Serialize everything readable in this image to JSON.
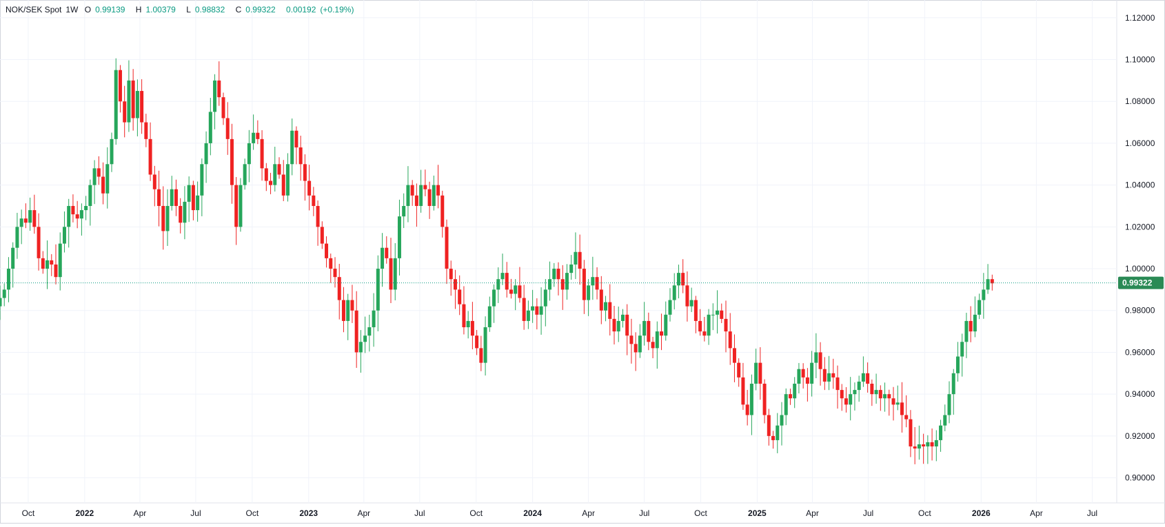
{
  "header": {
    "symbol": "NOK/SEK Spot",
    "interval": "1W",
    "open_label": "O",
    "open": "0.99139",
    "high_label": "H",
    "high": "1.00379",
    "low_label": "L",
    "low": "0.98832",
    "close_label": "C",
    "close": "0.99322",
    "change": "0.00192",
    "change_pct": "(+0.19%)"
  },
  "price_tag": "0.99322",
  "colors": {
    "up": "#26a65b",
    "down": "#ef2222",
    "grid": "#f0f3fa",
    "axis_text": "#131722",
    "current_line": "#089981",
    "price_tag_bg": "#2a8a55"
  },
  "chart_data": {
    "type": "candlestick",
    "title": "NOK/SEK Spot",
    "interval": "1W",
    "ylim": [
      0.888,
      1.1285
    ],
    "yticks": [
      "0.90000",
      "0.92000",
      "0.94000",
      "0.96000",
      "0.98000",
      "1.00000",
      "1.02000",
      "1.04000",
      "1.06000",
      "1.08000",
      "1.10000",
      "1.12000"
    ],
    "xticks": [
      "Oct",
      "2022",
      "Apr",
      "Jul",
      "Oct",
      "2023",
      "Apr",
      "Jul",
      "Oct",
      "2024",
      "Apr",
      "Jul",
      "Oct",
      "2025",
      "Apr",
      "Jul",
      "Oct",
      "2026",
      "Apr",
      "Jul"
    ],
    "xlim": [
      "2021-08-16",
      "2026-08-10"
    ],
    "first_week": "2021-08-16",
    "current_price": 0.99322,
    "grid": true,
    "closes": [
      0.986,
      0.99,
      1.0,
      1.01,
      1.02,
      1.024,
      1.022,
      1.028,
      1.02,
      1.005,
      1.0,
      1.004,
      1.002,
      0.996,
      1.012,
      1.02,
      1.03,
      1.026,
      1.024,
      1.028,
      1.03,
      1.04,
      1.048,
      1.044,
      1.036,
      1.05,
      1.062,
      1.095,
      1.08,
      1.07,
      1.09,
      1.072,
      1.085,
      1.07,
      1.062,
      1.045,
      1.038,
      1.03,
      1.018,
      1.03,
      1.038,
      1.03,
      1.022,
      1.032,
      1.04,
      1.028,
      1.035,
      1.05,
      1.06,
      1.075,
      1.09,
      1.082,
      1.072,
      1.062,
      1.04,
      1.02,
      1.04,
      1.05,
      1.06,
      1.065,
      1.062,
      1.048,
      1.042,
      1.04,
      1.05,
      1.045,
      1.035,
      1.05,
      1.066,
      1.058,
      1.05,
      1.042,
      1.035,
      1.03,
      1.02,
      1.012,
      1.005,
      1.0,
      0.996,
      0.985,
      0.975,
      0.985,
      0.98,
      0.96,
      0.965,
      0.968,
      0.972,
      0.98,
      1.0,
      1.01,
      1.005,
      0.99,
      1.005,
      1.025,
      1.03,
      1.04,
      1.035,
      1.03,
      1.04,
      1.038,
      1.03,
      1.04,
      1.035,
      1.02,
      1.0,
      0.995,
      0.99,
      0.983,
      0.972,
      0.975,
      0.968,
      0.962,
      0.955,
      0.972,
      0.982,
      0.99,
      0.995,
      0.998,
      0.99,
      0.988,
      0.992,
      0.986,
      0.975,
      0.98,
      0.982,
      0.978,
      0.982,
      0.99,
      0.995,
      1.0,
      0.995,
      0.99,
      0.998,
      1.002,
      1.008,
      1.0,
      0.985,
      0.992,
      0.996,
      0.99,
      0.98,
      0.984,
      0.976,
      0.97,
      0.975,
      0.978,
      0.968,
      0.964,
      0.96,
      0.968,
      0.975,
      0.965,
      0.962,
      0.97,
      0.968,
      0.978,
      0.985,
      0.992,
      0.998,
      0.992,
      0.982,
      0.985,
      0.975,
      0.97,
      0.968,
      0.978,
      0.978,
      0.98,
      0.976,
      0.97,
      0.962,
      0.955,
      0.948,
      0.935,
      0.93,
      0.945,
      0.955,
      0.945,
      0.93,
      0.92,
      0.918,
      0.925,
      0.93,
      0.94,
      0.938,
      0.945,
      0.952,
      0.948,
      0.945,
      0.955,
      0.96,
      0.952,
      0.946,
      0.95,
      0.948,
      0.942,
      0.938,
      0.935,
      0.94,
      0.942,
      0.946,
      0.95,
      0.945,
      0.94,
      0.942,
      0.938,
      0.94,
      0.938,
      0.935,
      0.936,
      0.93,
      0.928,
      0.915,
      0.914,
      0.916,
      0.915,
      0.917,
      0.915,
      0.918,
      0.925,
      0.93,
      0.94,
      0.95,
      0.958,
      0.965,
      0.975,
      0.97,
      0.978,
      0.985,
      0.99,
      0.995,
      0.993
    ],
    "series": [
      {
        "name": "NOK/SEK Spot"
      }
    ]
  }
}
